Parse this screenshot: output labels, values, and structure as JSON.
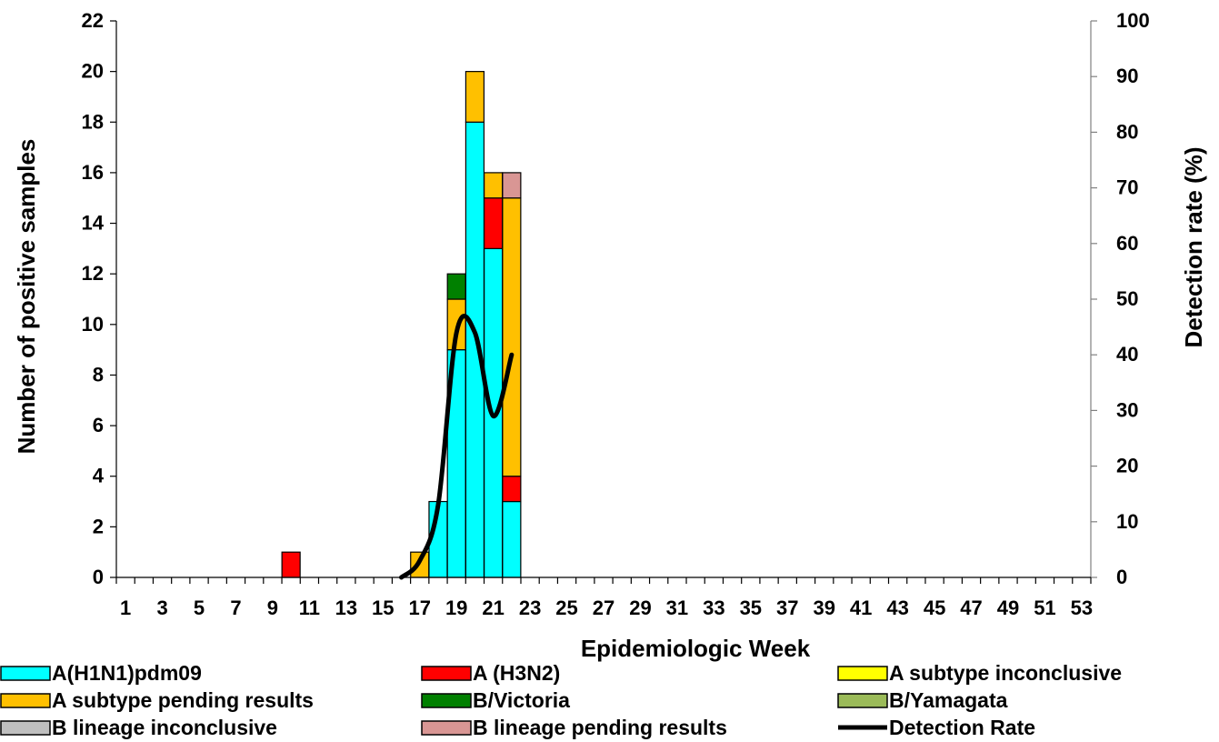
{
  "chart_data": {
    "type": "bar",
    "stacked": true,
    "xlabel": "Epidemiologic Week",
    "ylabel": "Number of positive samples",
    "y2label": "Detection rate (%)",
    "ylim": [
      0,
      22
    ],
    "y2lim": [
      0,
      100
    ],
    "yticks": [
      0,
      2,
      4,
      6,
      8,
      10,
      12,
      14,
      16,
      18,
      20,
      22
    ],
    "y2ticks": [
      0,
      10,
      20,
      30,
      40,
      50,
      60,
      70,
      80,
      90,
      100
    ],
    "weeks": [
      1,
      2,
      3,
      4,
      5,
      6,
      7,
      8,
      9,
      10,
      11,
      12,
      13,
      14,
      15,
      16,
      17,
      18,
      19,
      20,
      21,
      22,
      23,
      24,
      25,
      26,
      27,
      28,
      29,
      30,
      31,
      32,
      33,
      34,
      35,
      36,
      37,
      38,
      39,
      40,
      41,
      42,
      43,
      44,
      45,
      46,
      47,
      48,
      49,
      50,
      51,
      52,
      53
    ],
    "xtick_labels": [
      "1",
      "3",
      "5",
      "7",
      "9",
      "11",
      "13",
      "15",
      "17",
      "19",
      "21",
      "23",
      "25",
      "27",
      "29",
      "31",
      "33",
      "35",
      "37",
      "39",
      "41",
      "43",
      "45",
      "47",
      "49",
      "51",
      "53"
    ],
    "grid": false,
    "legend_position": "bottom",
    "series": [
      {
        "name": "A(H1N1)pdm09",
        "color": "#00FFFF",
        "values": {
          "18": 3,
          "19": 9,
          "20": 18,
          "21": 13,
          "22": 3
        }
      },
      {
        "name": "A (H3N2)",
        "color": "#FF0000",
        "values": {
          "10": 1,
          "21": 2,
          "22": 1
        }
      },
      {
        "name": "A subtype inconclusive",
        "color": "#FFFF00",
        "values": {}
      },
      {
        "name": "A subtype pending results",
        "color": "#FFC000",
        "values": {
          "17": 1,
          "19": 2,
          "20": 2,
          "21": 1,
          "22": 11
        }
      },
      {
        "name": "B/Victoria",
        "color": "#008000",
        "values": {
          "19": 1
        }
      },
      {
        "name": "B/Yamagata",
        "color": "#9BBB59",
        "values": {}
      },
      {
        "name": "B lineage inconclusive",
        "color": "#BFBFBF",
        "values": {}
      },
      {
        "name": "B lineage pending results",
        "color": "#D99694",
        "values": {
          "22": 1
        }
      }
    ],
    "line": {
      "name": "Detection Rate",
      "color": "#000000",
      "points": [
        [
          16,
          0
        ],
        [
          17,
          3
        ],
        [
          18,
          13
        ],
        [
          19,
          44
        ],
        [
          20,
          44
        ],
        [
          21,
          29
        ],
        [
          22,
          40
        ]
      ]
    }
  }
}
